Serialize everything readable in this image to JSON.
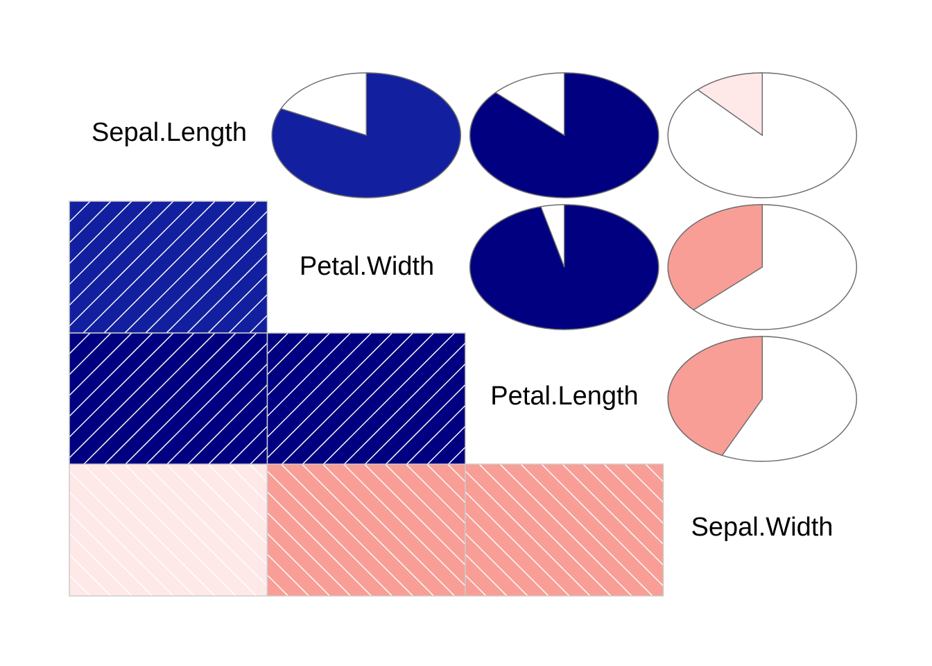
{
  "chart_data": {
    "type": "heatmap",
    "subtype": "corrgram",
    "variables": [
      "Sepal.Length",
      "Petal.Width",
      "Petal.Length",
      "Sepal.Width"
    ],
    "lower_panel": "shade",
    "upper_panel": "pie",
    "correlations": [
      {
        "row": "Sepal.Length",
        "col": "Petal.Width",
        "r": 0.82
      },
      {
        "row": "Sepal.Length",
        "col": "Petal.Length",
        "r": 0.87
      },
      {
        "row": "Sepal.Length",
        "col": "Sepal.Width",
        "r": -0.12
      },
      {
        "row": "Petal.Width",
        "col": "Petal.Length",
        "r": 0.96
      },
      {
        "row": "Petal.Width",
        "col": "Sepal.Width",
        "r": -0.37
      },
      {
        "row": "Petal.Length",
        "col": "Sepal.Width",
        "r": -0.43
      }
    ],
    "colors": {
      "pos_strong": "#000080",
      "pos_mid": "#1220A0",
      "neg_weak": "#FFE8E8",
      "neg_mid": "#F89E96",
      "hatch": "#FFFFFF",
      "cell_border": "#CCCCCC",
      "pie_border": "#6E6E6E"
    }
  }
}
